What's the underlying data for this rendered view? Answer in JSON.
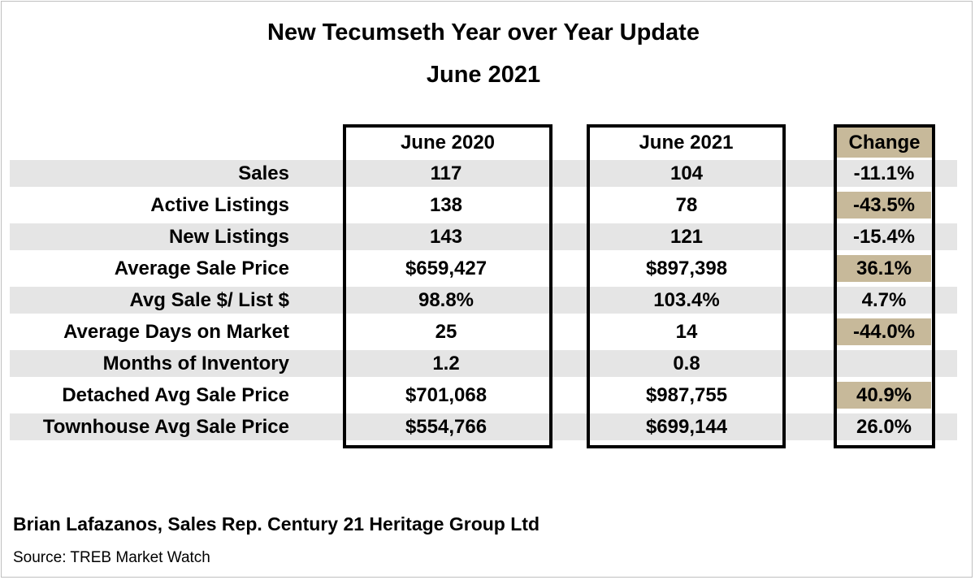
{
  "chart_data": {
    "type": "table",
    "title": "New Tecumseth Year over Year Update",
    "subtitle": "June 2021",
    "columns": [
      "June 2020",
      "June 2021",
      "Change"
    ],
    "rows": [
      {
        "label": "Sales",
        "june_2020": "117",
        "june_2021": "104",
        "change": "-11.1%",
        "highlight": false
      },
      {
        "label": "Active Listings",
        "june_2020": "138",
        "june_2021": "78",
        "change": "-43.5%",
        "highlight": true
      },
      {
        "label": "New Listings",
        "june_2020": "143",
        "june_2021": "121",
        "change": "-15.4%",
        "highlight": false
      },
      {
        "label": "Average Sale Price",
        "june_2020": "$659,427",
        "june_2021": "$897,398",
        "change": "36.1%",
        "highlight": true
      },
      {
        "label": "Avg Sale $/ List $",
        "june_2020": "98.8%",
        "june_2021": "103.4%",
        "change": "4.7%",
        "highlight": false
      },
      {
        "label": "Average Days on Market",
        "june_2020": "25",
        "june_2021": "14",
        "change": "-44.0%",
        "highlight": true
      },
      {
        "label": "Months of Inventory",
        "june_2020": "1.2",
        "june_2021": "0.8",
        "change": "",
        "highlight": false
      },
      {
        "label": "Detached Avg Sale Price",
        "june_2020": "$701,068",
        "june_2021": "$987,755",
        "change": "40.9%",
        "highlight": true
      },
      {
        "label": "Townhouse Avg Sale Price",
        "june_2020": "$554,766",
        "june_2021": "$699,144",
        "change": "26.0%",
        "highlight": false
      }
    ],
    "colors": {
      "row_shade": "#e5e5e5",
      "highlight": "#c7b99a",
      "border": "#000000"
    }
  },
  "footer": {
    "credit": "Brian Lafazanos, Sales Rep. Century 21 Heritage Group Ltd",
    "source": "Source: TREB Market Watch"
  }
}
